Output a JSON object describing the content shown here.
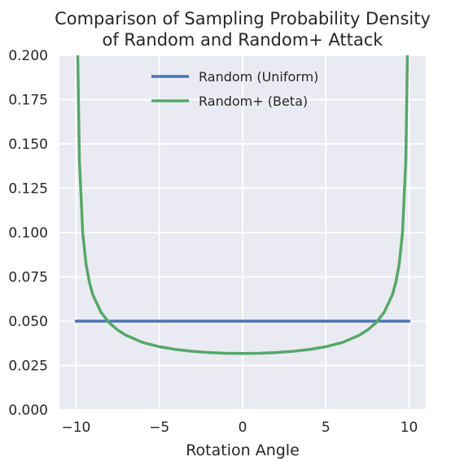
{
  "chart_data": {
    "type": "line",
    "title_line1": "Comparison of Sampling Probability Density",
    "title_line2": "of Random and Random+ Attack",
    "xlabel": "Rotation Angle",
    "ylabel": "",
    "xlim": [
      -11,
      11
    ],
    "ylim": [
      0,
      0.2
    ],
    "xticks": [
      -10,
      -5,
      0,
      5,
      10
    ],
    "xtick_labels": [
      "−10",
      "−5",
      "0",
      "5",
      "10"
    ],
    "yticks": [
      0,
      0.025,
      0.05,
      0.075,
      0.1,
      0.125,
      0.15,
      0.175,
      0.2
    ],
    "ytick_labels": [
      "0.000",
      "0.025",
      "0.050",
      "0.075",
      "0.100",
      "0.125",
      "0.150",
      "0.175",
      "0.200"
    ],
    "grid": true,
    "legend_position": "top-center",
    "series": [
      {
        "name": "Random (Uniform)",
        "color": "#4c72b0",
        "x": [
          -10,
          10
        ],
        "y": [
          0.05,
          0.05
        ]
      },
      {
        "name": "Random+ (Beta)",
        "color": "#55a868",
        "x": [
          -9.9,
          -9.8,
          -9.6,
          -9.4,
          -9.2,
          -9.0,
          -8.5,
          -8.0,
          -7.5,
          -7.0,
          -6.0,
          -5.0,
          -4.0,
          -3.0,
          -2.0,
          -1.0,
          0.0,
          1.0,
          2.0,
          3.0,
          4.0,
          5.0,
          6.0,
          7.0,
          7.5,
          8.0,
          8.5,
          9.0,
          9.2,
          9.4,
          9.6,
          9.8,
          9.9
        ],
        "y": [
          0.2,
          0.141,
          0.1,
          0.082,
          0.072,
          0.065,
          0.055,
          0.049,
          0.045,
          0.042,
          0.038,
          0.0356,
          0.034,
          0.033,
          0.0323,
          0.0319,
          0.0318,
          0.0319,
          0.0323,
          0.033,
          0.034,
          0.0356,
          0.038,
          0.042,
          0.045,
          0.049,
          0.055,
          0.065,
          0.072,
          0.082,
          0.1,
          0.141,
          0.2
        ]
      }
    ]
  }
}
